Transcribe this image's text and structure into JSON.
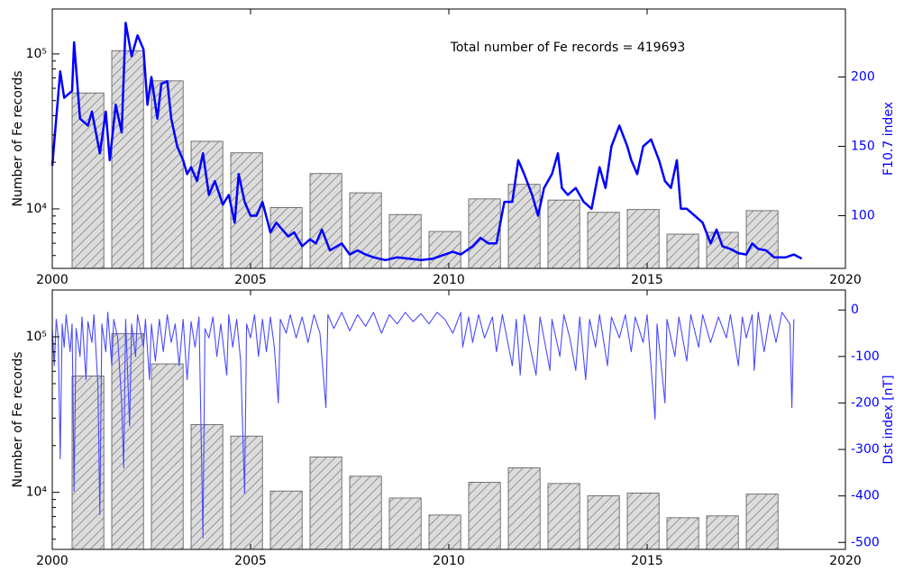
{
  "chart_data": [
    {
      "type": "combo",
      "annotation": "Total number of Fe records = 419693",
      "ylabel": "Number of Fe records",
      "y2label": "F10.7 index",
      "xlim": [
        2000,
        2020
      ],
      "xticks": [
        2000,
        2005,
        2010,
        2015,
        2020
      ],
      "ylim": [
        4130,
        195000
      ],
      "log_scale": true,
      "yticks": [
        {
          "value": 10000,
          "label": "10⁴"
        },
        {
          "value": 100000,
          "label": "10⁵"
        }
      ],
      "y2lim": [
        62,
        249
      ],
      "y2ticks": [
        100,
        150,
        200
      ],
      "series": [
        {
          "type": "bar",
          "color": "#dcdcdc",
          "x": [
            2000.5,
            2001.5,
            2002.5,
            2003.5,
            2004.5,
            2005.5,
            2006.5,
            2007.5,
            2008.5,
            2009.5,
            2010.5,
            2011.5,
            2012.5,
            2013.5,
            2014.5,
            2015.5,
            2016.5,
            2017.5
          ],
          "values": [
            56000,
            105000,
            67000,
            27300,
            23000,
            10200,
            16900,
            12700,
            9200,
            7150,
            11600,
            14400,
            11400,
            9500,
            9900,
            6870,
            7060,
            9740
          ]
        },
        {
          "type": "line",
          "axis": "y2",
          "color": "#0000ff",
          "x": [
            2000.0,
            2000.2,
            2000.3,
            2000.5,
            2000.55,
            2000.7,
            2000.9,
            2001.0,
            2001.2,
            2001.35,
            2001.45,
            2001.6,
            2001.75,
            2001.85,
            2002.0,
            2002.15,
            2002.3,
            2002.4,
            2002.5,
            2002.65,
            2002.75,
            2002.9,
            2003.0,
            2003.15,
            2003.3,
            2003.4,
            2003.5,
            2003.65,
            2003.8,
            2003.95,
            2004.1,
            2004.3,
            2004.45,
            2004.6,
            2004.7,
            2004.85,
            2005.0,
            2005.15,
            2005.3,
            2005.5,
            2005.65,
            2005.8,
            2005.95,
            2006.1,
            2006.3,
            2006.5,
            2006.65,
            2006.8,
            2007.0,
            2007.3,
            2007.5,
            2007.7,
            2007.9,
            2008.1,
            2008.4,
            2008.7,
            2009.0,
            2009.3,
            2009.6,
            2009.9,
            2010.1,
            2010.3,
            2010.6,
            2010.8,
            2011.0,
            2011.2,
            2011.4,
            2011.6,
            2011.75,
            2011.9,
            2012.1,
            2012.25,
            2012.4,
            2012.6,
            2012.75,
            2012.85,
            2013.0,
            2013.2,
            2013.4,
            2013.6,
            2013.8,
            2013.95,
            2014.1,
            2014.3,
            2014.5,
            2014.6,
            2014.75,
            2014.9,
            2015.1,
            2015.3,
            2015.45,
            2015.6,
            2015.75,
            2015.85,
            2016.0,
            2016.2,
            2016.4,
            2016.6,
            2016.75,
            2016.9,
            2017.1,
            2017.3,
            2017.5,
            2017.65,
            2017.8,
            2018.0,
            2018.2,
            2018.5,
            2018.7,
            2018.9
          ],
          "values": [
            136,
            204,
            185,
            190,
            225,
            170,
            165,
            175,
            145,
            175,
            140,
            180,
            160,
            239,
            215,
            230,
            220,
            180,
            200,
            170,
            195,
            197,
            170,
            150,
            140,
            130,
            135,
            125,
            145,
            115,
            125,
            108,
            115,
            95,
            130,
            110,
            100,
            100,
            110,
            88,
            95,
            90,
            85,
            88,
            78,
            83,
            80,
            90,
            75,
            80,
            72,
            75,
            72,
            70,
            68,
            70,
            69,
            68,
            69,
            72,
            74,
            72,
            78,
            84,
            80,
            80,
            110,
            110,
            140,
            130,
            115,
            100,
            120,
            130,
            145,
            120,
            115,
            120,
            110,
            105,
            135,
            120,
            150,
            165,
            150,
            140,
            130,
            150,
            155,
            140,
            125,
            120,
            140,
            105,
            105,
            100,
            95,
            80,
            90,
            78,
            76,
            73,
            72,
            80,
            76,
            75,
            70,
            70,
            72,
            69
          ]
        }
      ]
    },
    {
      "type": "combo",
      "ylabel": "Number of Fe records",
      "y2label": "Dst index [nT]",
      "xlim": [
        2000,
        2020
      ],
      "xticks": [
        2000,
        2005,
        2010,
        2015,
        2020
      ],
      "ylim": [
        4300,
        200000
      ],
      "log_scale": true,
      "yticks": [
        {
          "value": 10000,
          "label": "10⁴"
        },
        {
          "value": 100000,
          "label": "10⁵"
        }
      ],
      "y2lim": [
        -515,
        43
      ],
      "y2ticks": [
        0,
        -100,
        -200,
        -300,
        -400,
        -500
      ],
      "series": [
        {
          "type": "bar",
          "color": "#dcdcdc",
          "x": [
            2000.5,
            2001.5,
            2002.5,
            2003.5,
            2004.5,
            2005.5,
            2006.5,
            2007.5,
            2008.5,
            2009.5,
            2010.5,
            2011.5,
            2012.5,
            2013.5,
            2014.5,
            2015.5,
            2016.5,
            2017.5
          ],
          "values": [
            56000,
            105000,
            67000,
            27300,
            23000,
            10200,
            16900,
            12700,
            9200,
            7150,
            11600,
            14400,
            11400,
            9500,
            9900,
            6870,
            7060,
            9740
          ]
        },
        {
          "type": "line",
          "axis": "y2",
          "color": "#4a4aff",
          "x": [
            2000.0,
            2000.05,
            2000.1,
            2000.15,
            2000.2,
            2000.25,
            2000.3,
            2000.35,
            2000.45,
            2000.5,
            2000.55,
            2000.6,
            2000.7,
            2000.75,
            2000.85,
            2000.9,
            2001.0,
            2001.05,
            2001.15,
            2001.2,
            2001.25,
            2001.35,
            2001.4,
            2001.5,
            2001.55,
            2001.65,
            2001.75,
            2001.8,
            2001.85,
            2001.95,
            2002.0,
            2002.1,
            2002.15,
            2002.3,
            2002.35,
            2002.45,
            2002.5,
            2002.6,
            2002.7,
            2002.8,
            2002.9,
            2003.0,
            2003.1,
            2003.2,
            2003.3,
            2003.4,
            2003.5,
            2003.6,
            2003.7,
            2003.8,
            2003.85,
            2003.95,
            2004.05,
            2004.15,
            2004.25,
            2004.4,
            2004.45,
            2004.55,
            2004.65,
            2004.75,
            2004.85,
            2004.9,
            2005.0,
            2005.1,
            2005.2,
            2005.3,
            2005.4,
            2005.5,
            2005.6,
            2005.7,
            2005.75,
            2005.9,
            2006.0,
            2006.15,
            2006.3,
            2006.45,
            2006.6,
            2006.75,
            2006.9,
            2006.95,
            2007.1,
            2007.3,
            2007.5,
            2007.7,
            2007.9,
            2008.1,
            2008.3,
            2008.5,
            2008.7,
            2008.9,
            2009.1,
            2009.3,
            2009.5,
            2009.7,
            2009.9,
            2010.1,
            2010.3,
            2010.35,
            2010.5,
            2010.6,
            2010.75,
            2010.9,
            2011.1,
            2011.2,
            2011.35,
            2011.6,
            2011.7,
            2011.8,
            2011.9,
            2012.05,
            2012.2,
            2012.3,
            2012.55,
            2012.6,
            2012.8,
            2012.9,
            2013.05,
            2013.2,
            2013.3,
            2013.45,
            2013.55,
            2013.7,
            2013.8,
            2014.0,
            2014.1,
            2014.3,
            2014.45,
            2014.6,
            2014.7,
            2014.9,
            2015.0,
            2015.2,
            2015.25,
            2015.45,
            2015.5,
            2015.7,
            2015.8,
            2016.0,
            2016.1,
            2016.3,
            2016.4,
            2016.6,
            2016.8,
            2017.0,
            2017.1,
            2017.3,
            2017.4,
            2017.5,
            2017.65,
            2017.7,
            2017.8,
            2017.95,
            2018.1,
            2018.25,
            2018.4,
            2018.6,
            2018.65,
            2018.7
          ],
          "values": [
            -40,
            -120,
            -20,
            -60,
            -320,
            -30,
            -80,
            -10,
            -90,
            -30,
            -390,
            -40,
            -100,
            -15,
            -150,
            -25,
            -70,
            -10,
            -160,
            -440,
            -30,
            -90,
            -5,
            -120,
            -20,
            -60,
            -200,
            -340,
            -20,
            -250,
            -30,
            -100,
            -10,
            -80,
            -20,
            -150,
            -30,
            -110,
            -20,
            -90,
            -10,
            -70,
            -30,
            -120,
            -20,
            -150,
            -25,
            -80,
            -15,
            -490,
            -40,
            -60,
            -15,
            -100,
            -30,
            -140,
            -10,
            -80,
            -20,
            -110,
            -395,
            -30,
            -60,
            -10,
            -100,
            -20,
            -90,
            -15,
            -80,
            -200,
            -20,
            -50,
            -10,
            -60,
            -15,
            -70,
            -10,
            -50,
            -210,
            -10,
            -40,
            -5,
            -45,
            -10,
            -35,
            -5,
            -50,
            -10,
            -30,
            -5,
            -25,
            -8,
            -30,
            -5,
            -20,
            -50,
            -5,
            -80,
            -15,
            -70,
            -10,
            -60,
            -15,
            -90,
            -10,
            -120,
            -20,
            -140,
            -10,
            -80,
            -140,
            -15,
            -130,
            -20,
            -100,
            -10,
            -60,
            -130,
            -15,
            -150,
            -20,
            -80,
            -10,
            -120,
            -15,
            -60,
            -10,
            -90,
            -15,
            -70,
            -10,
            -235,
            -30,
            -200,
            -20,
            -100,
            -15,
            -110,
            -10,
            -80,
            -10,
            -70,
            -15,
            -60,
            -10,
            -120,
            -15,
            -60,
            -10,
            -130,
            -5,
            -90,
            -10,
            -70,
            -5,
            -30,
            -210,
            -20
          ]
        }
      ]
    }
  ]
}
